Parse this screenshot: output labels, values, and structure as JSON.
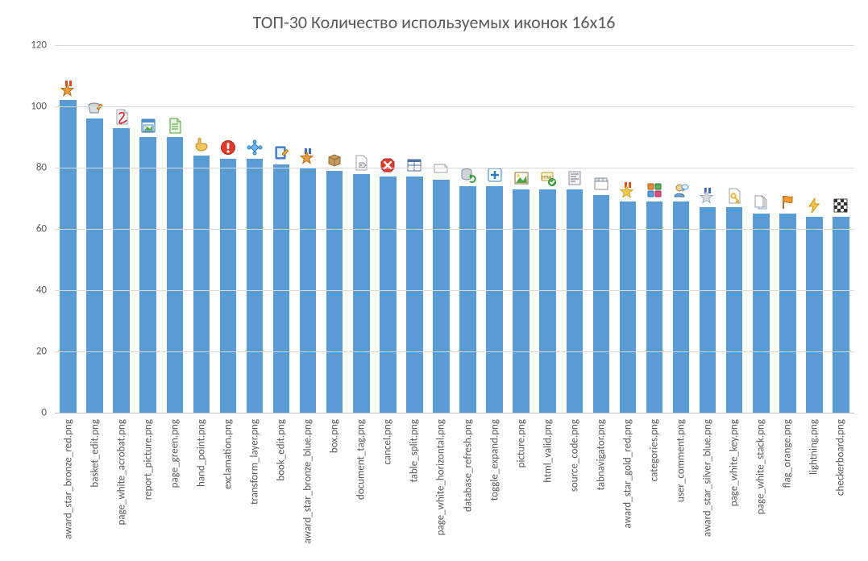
{
  "chart": {
    "type": "bar",
    "title": "ТОП-30 Количество используемых иконок 16х16",
    "title_fontsize": 22,
    "title_color": "#595959",
    "background_color": "#ffffff",
    "grid_color": "#d9d9d9",
    "axis_line_color": "#bfbfbf",
    "label_color": "#595959",
    "label_fontsize": 13,
    "ylim": [
      0,
      120
    ],
    "ytick_step": 20,
    "bar_color": "#5b9bd5",
    "bar_width": 0.62,
    "categories": [
      "award_star_bronze_red.png",
      "basket_edit.png",
      "page_white_acrobat.png",
      "report_picture.png",
      "page_green.png",
      "hand_point.png",
      "exclamation.png",
      "transform_layer.png",
      "book_edit.png",
      "award_star_bronze_blue.png",
      "box.png",
      "document_tag.png",
      "cancel.png",
      "table_split.png",
      "page_white_horizontal.png",
      "database_refresh.png",
      "toggle_expand.png",
      "picture.png",
      "html_valid.png",
      "source_code.png",
      "tabnavigator.png",
      "award_star_gold_red.png",
      "categories.png",
      "user_comment.png",
      "award_star_silver_blue.png",
      "page_white_key.png",
      "page_white_stack.png",
      "flag_orange.png",
      "lightning.png",
      "checkerboard.png"
    ],
    "values": [
      102,
      96,
      93,
      90,
      90,
      84,
      83,
      83,
      81,
      80,
      79,
      78,
      77,
      77,
      76,
      74,
      74,
      73,
      73,
      73,
      71,
      69,
      69,
      69,
      67,
      67,
      65,
      65,
      64,
      64
    ],
    "icons": [
      "award-star-bronze-red-icon",
      "basket-edit-icon",
      "page-white-acrobat-icon",
      "report-picture-icon",
      "page-green-icon",
      "hand-point-icon",
      "exclamation-icon",
      "transform-layer-icon",
      "book-edit-icon",
      "award-star-bronze-blue-icon",
      "box-icon",
      "document-tag-icon",
      "cancel-icon",
      "table-split-icon",
      "page-white-horizontal-icon",
      "database-refresh-icon",
      "toggle-expand-icon",
      "picture-icon",
      "html-valid-icon",
      "source-code-icon",
      "tabnavigator-icon",
      "award-star-gold-red-icon",
      "categories-icon",
      "user-comment-icon",
      "award-star-silver-blue-icon",
      "page-white-key-icon",
      "page-white-stack-icon",
      "flag-orange-icon",
      "lightning-icon",
      "checkerboard-icon"
    ]
  }
}
